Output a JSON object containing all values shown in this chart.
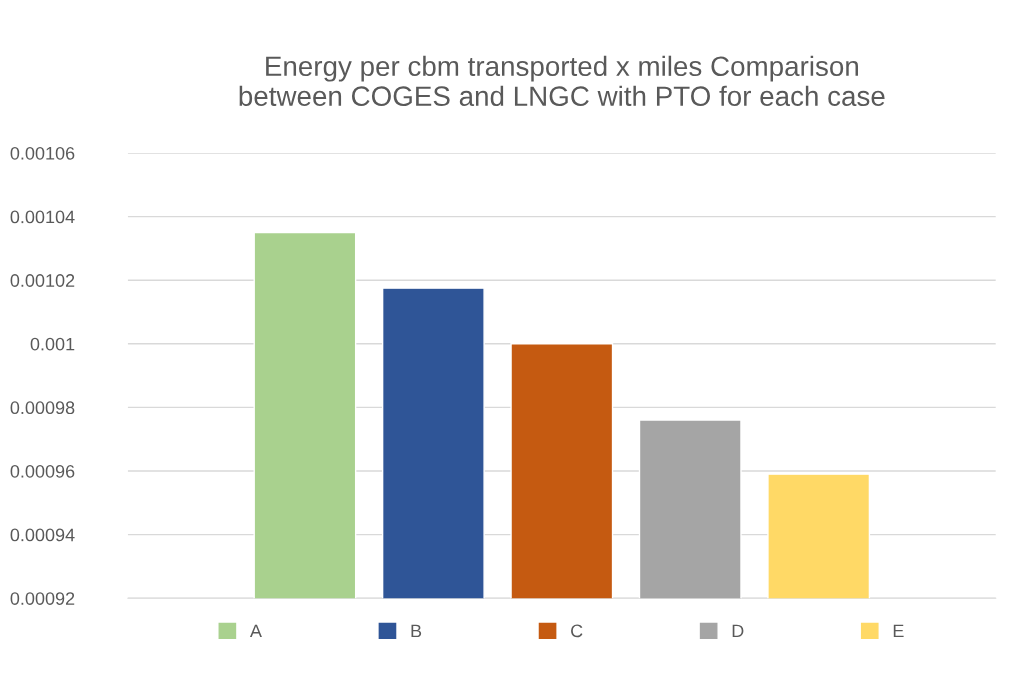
{
  "chart_data": {
    "type": "bar",
    "title": "Energy per cbm transported x miles Comparison\nbetween COGES and LNGC with PTO for each case",
    "categories": [
      null
    ],
    "series": [
      {
        "name": "A",
        "color": "#a9d18e",
        "values": [
          0.001035
        ]
      },
      {
        "name": "B",
        "color": "#2f5597",
        "values": [
          0.0010175
        ]
      },
      {
        "name": "C",
        "color": "#c55a11",
        "values": [
          0.001
        ]
      },
      {
        "name": "D",
        "color": "#a5a5a5",
        "values": [
          0.000976
        ]
      },
      {
        "name": "E",
        "color": "#ffd966",
        "values": [
          0.000959
        ]
      }
    ],
    "ylim": [
      0.00092,
      0.00106
    ],
    "yticks": [
      {
        "value": 0.00092,
        "label": "0.00092"
      },
      {
        "value": 0.00094,
        "label": "0.00094"
      },
      {
        "value": 0.00096,
        "label": "0.00096"
      },
      {
        "value": 0.00098,
        "label": "0.00098"
      },
      {
        "value": 0.001,
        "label": "0.001"
      },
      {
        "value": 0.00102,
        "label": "0.00102"
      },
      {
        "value": 0.00104,
        "label": "0.00104"
      },
      {
        "value": 0.00106,
        "label": "0.00106"
      }
    ],
    "grid": "y",
    "legend": "bottom"
  }
}
